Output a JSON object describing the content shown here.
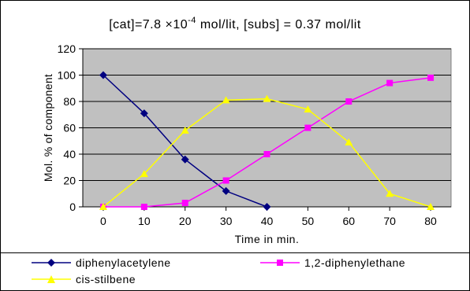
{
  "chart_data": {
    "type": "line",
    "title_parts": {
      "pre": "[cat]=7.8 ×10",
      "sup": "-4",
      "post": " mol/lit, [subs] = 0.37 mol/lit"
    },
    "xlabel": "Time in min.",
    "ylabel": "Mol. % of component",
    "x": [
      0,
      10,
      20,
      30,
      40,
      50,
      60,
      70,
      80
    ],
    "xlim": [
      -5,
      85
    ],
    "ylim": [
      0,
      120
    ],
    "yticks": [
      0,
      20,
      40,
      60,
      80,
      100,
      120
    ],
    "grid": true,
    "plot_background": "#c0c0c0",
    "legend_position": "bottom",
    "series": [
      {
        "name": "diphenylacetylene",
        "color": "#000080",
        "marker": "diamond",
        "points": [
          [
            0,
            100
          ],
          [
            10,
            71
          ],
          [
            20,
            36
          ],
          [
            30,
            12
          ],
          [
            40,
            0
          ]
        ]
      },
      {
        "name": "1,2-diphenylethane",
        "color": "#ff00ff",
        "marker": "square",
        "points": [
          [
            0,
            0
          ],
          [
            10,
            0
          ],
          [
            20,
            3
          ],
          [
            30,
            20
          ],
          [
            40,
            40
          ],
          [
            50,
            60
          ],
          [
            60,
            80
          ],
          [
            70,
            94
          ],
          [
            80,
            98
          ]
        ]
      },
      {
        "name": "cis-stilbene",
        "color": "#ffff00",
        "marker": "triangle",
        "points": [
          [
            0,
            0
          ],
          [
            10,
            25
          ],
          [
            20,
            58
          ],
          [
            30,
            81
          ],
          [
            40,
            82
          ],
          [
            50,
            74
          ],
          [
            60,
            49
          ],
          [
            70,
            10
          ],
          [
            80,
            0
          ]
        ]
      }
    ]
  }
}
